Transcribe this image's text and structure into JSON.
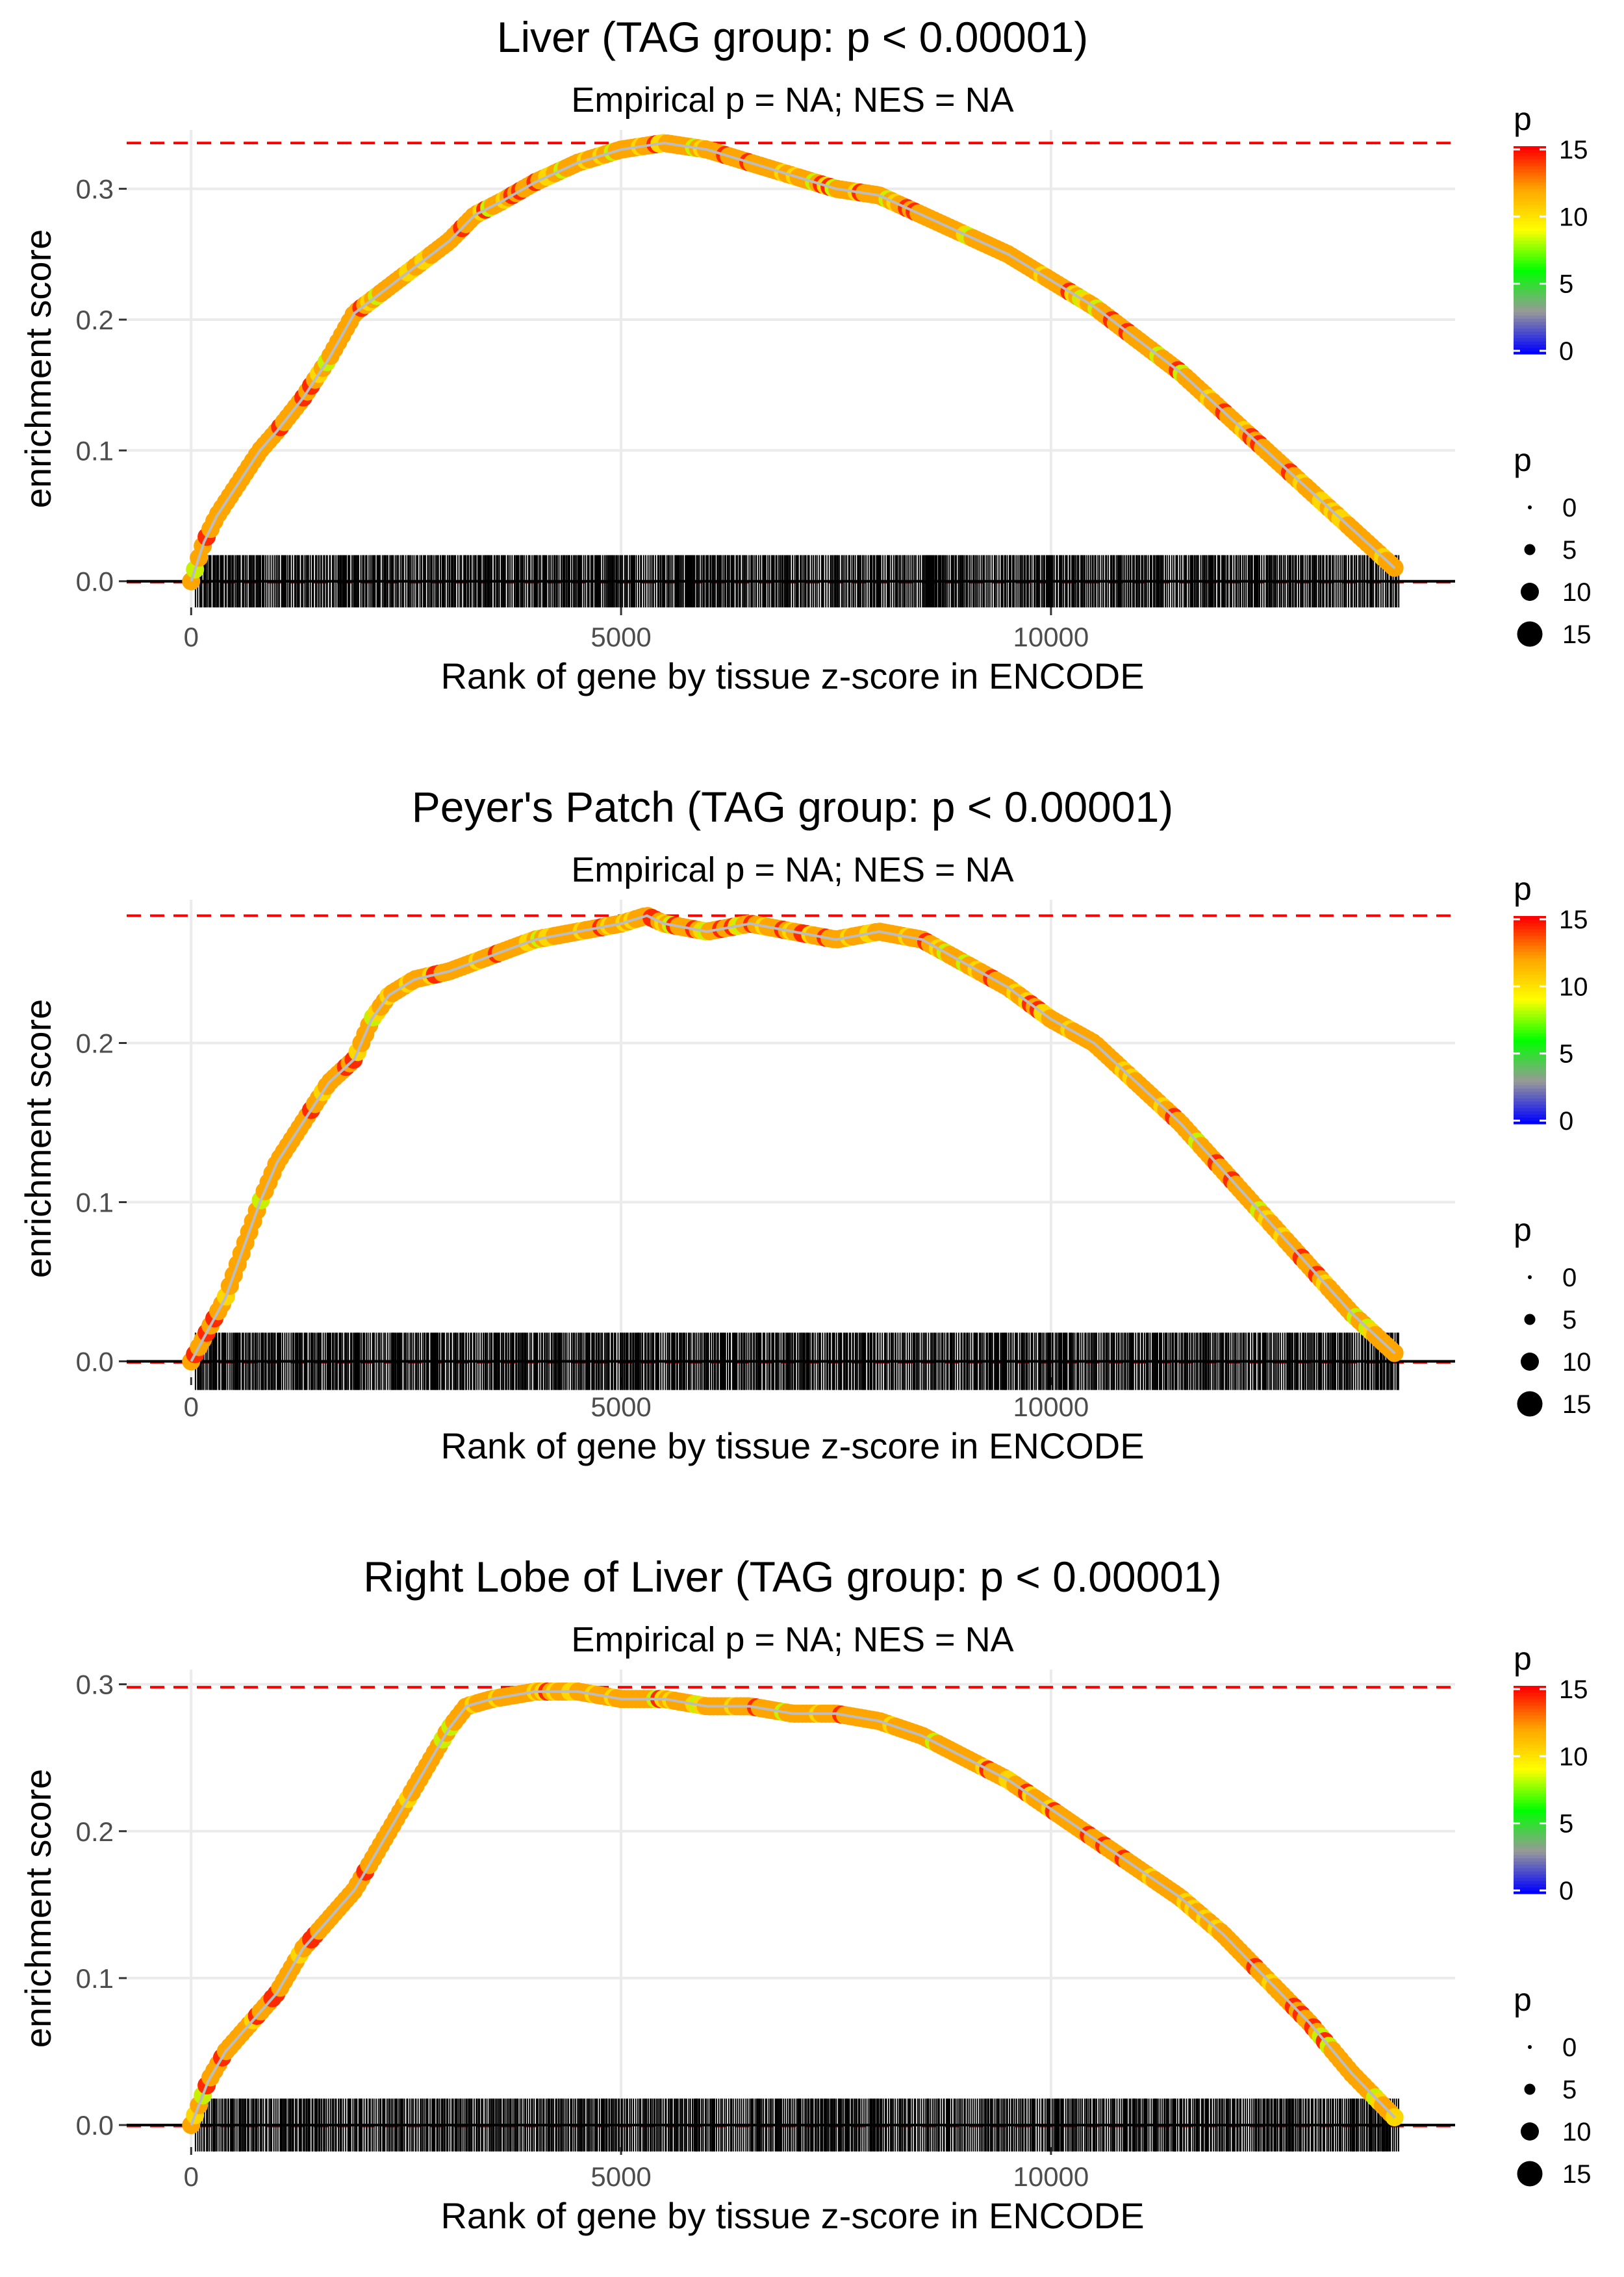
{
  "chart_data": [
    {
      "type": "line",
      "title": "Liver (TAG group: p < 0.00001)",
      "subtitle": "Empirical p = NA; NES = NA",
      "xlabel": "Rank of gene by tissue z-score in ENCODE",
      "ylabel": "enrichment score",
      "xlim": [
        -750,
        14700
      ],
      "ylim": [
        -0.02,
        0.345
      ],
      "xticks": [
        0,
        5000,
        10000
      ],
      "xtick_labels": [
        "0",
        "5000",
        "10000"
      ],
      "yticks": [
        0.0,
        0.1,
        0.2,
        0.3
      ],
      "ytick_labels": [
        "0.0",
        "0.1",
        "0.2",
        "0.3"
      ],
      "max_es": 0.335,
      "rug": {
        "x_start": 50,
        "x_end": 14050,
        "height": 0.02
      },
      "series": [
        {
          "name": "running enrichment score",
          "x": [
            0,
            150,
            300,
            500,
            800,
            1000,
            1300,
            1600,
            1900,
            2200,
            2600,
            3000,
            3300,
            3600,
            4000,
            4500,
            5000,
            5500,
            6000,
            6500,
            7000,
            7500,
            8000,
            8500,
            9000,
            9500,
            10000,
            10500,
            11000,
            11500,
            12000,
            12500,
            13000,
            13500,
            14000
          ],
          "y": [
            0.0,
            0.03,
            0.05,
            0.07,
            0.1,
            0.115,
            0.14,
            0.17,
            0.205,
            0.22,
            0.24,
            0.26,
            0.28,
            0.29,
            0.305,
            0.32,
            0.33,
            0.335,
            0.33,
            0.32,
            0.31,
            0.3,
            0.295,
            0.28,
            0.265,
            0.25,
            0.23,
            0.21,
            0.185,
            0.16,
            0.13,
            0.1,
            0.07,
            0.04,
            0.01
          ]
        }
      ],
      "legend": {
        "color_title": "p",
        "color_tick_labels": [
          "0",
          "5",
          "10",
          "15"
        ],
        "color_tick_values": [
          0,
          5,
          10,
          15
        ],
        "colors": [
          "#0000ff",
          "#999999",
          "#00ff00",
          "#ffff00",
          "#ffa500",
          "#ff0000"
        ],
        "size_title": "p",
        "size_labels": [
          "0",
          "5",
          "10",
          "15"
        ],
        "size_values": [
          0,
          5,
          10,
          15
        ]
      }
    },
    {
      "type": "line",
      "title": "Peyer's Patch (TAG group: p < 0.00001)",
      "subtitle": "Empirical p = NA; NES = NA",
      "xlabel": "Rank of gene by tissue z-score in ENCODE",
      "ylabel": "enrichment score",
      "xlim": [
        -750,
        14700
      ],
      "ylim": [
        -0.01,
        0.29
      ],
      "xticks": [
        0,
        5000,
        10000
      ],
      "xtick_labels": [
        "0",
        "5000",
        "10000"
      ],
      "yticks": [
        0.0,
        0.1,
        0.2
      ],
      "ytick_labels": [
        "0.0",
        "0.1",
        "0.2"
      ],
      "max_es": 0.28,
      "rug": {
        "x_start": 50,
        "x_end": 14050,
        "height": 0.018
      },
      "series": [
        {
          "name": "running enrichment score",
          "x": [
            0,
            200,
            400,
            600,
            800,
            1000,
            1300,
            1600,
            1900,
            2100,
            2300,
            2600,
            3000,
            3500,
            4000,
            4500,
            5000,
            5300,
            5500,
            6000,
            6500,
            7000,
            7500,
            8000,
            8500,
            9000,
            9500,
            10000,
            10500,
            11000,
            11500,
            12000,
            12500,
            13000,
            13500,
            14000
          ],
          "y": [
            0.0,
            0.02,
            0.04,
            0.07,
            0.1,
            0.125,
            0.15,
            0.175,
            0.19,
            0.215,
            0.23,
            0.24,
            0.245,
            0.255,
            0.265,
            0.27,
            0.275,
            0.28,
            0.275,
            0.27,
            0.275,
            0.27,
            0.265,
            0.27,
            0.265,
            0.25,
            0.235,
            0.215,
            0.2,
            0.175,
            0.15,
            0.12,
            0.09,
            0.06,
            0.03,
            0.005
          ]
        }
      ],
      "legend": {
        "color_title": "p",
        "color_tick_labels": [
          "0",
          "5",
          "10",
          "15"
        ],
        "color_tick_values": [
          0,
          5,
          10,
          15
        ],
        "colors": [
          "#0000ff",
          "#999999",
          "#00ff00",
          "#ffff00",
          "#ffa500",
          "#ff0000"
        ],
        "size_title": "p",
        "size_labels": [
          "0",
          "5",
          "10",
          "15"
        ],
        "size_values": [
          0,
          5,
          10,
          15
        ]
      }
    },
    {
      "type": "line",
      "title": "Right Lobe of Liver (TAG group: p < 0.00001)",
      "subtitle": "Empirical p = NA; NES = NA",
      "xlabel": "Rank of gene by tissue z-score in ENCODE",
      "ylabel": "enrichment score",
      "xlim": [
        -750,
        14700
      ],
      "ylim": [
        -0.015,
        0.31
      ],
      "xticks": [
        0,
        5000,
        10000
      ],
      "xtick_labels": [
        "0",
        "5000",
        "10000"
      ],
      "yticks": [
        0.0,
        0.1,
        0.2,
        0.3
      ],
      "ytick_labels": [
        "0.0",
        "0.1",
        "0.2",
        "0.3"
      ],
      "max_es": 0.298,
      "rug": {
        "x_start": 50,
        "x_end": 14050,
        "height": 0.018
      },
      "series": [
        {
          "name": "running enrichment score",
          "x": [
            0,
            200,
            400,
            700,
            1000,
            1300,
            1600,
            1900,
            2200,
            2500,
            2800,
            3000,
            3200,
            3500,
            4000,
            4500,
            5000,
            5500,
            6000,
            6500,
            7000,
            7500,
            8000,
            8500,
            9000,
            9500,
            10000,
            10500,
            11000,
            11500,
            12000,
            12500,
            13000,
            13500,
            14000
          ],
          "y": [
            0.0,
            0.03,
            0.05,
            0.07,
            0.09,
            0.12,
            0.14,
            0.16,
            0.19,
            0.22,
            0.25,
            0.27,
            0.285,
            0.29,
            0.295,
            0.295,
            0.29,
            0.29,
            0.285,
            0.285,
            0.28,
            0.28,
            0.275,
            0.265,
            0.25,
            0.235,
            0.215,
            0.195,
            0.175,
            0.155,
            0.13,
            0.1,
            0.07,
            0.035,
            0.005
          ]
        }
      ],
      "legend": {
        "color_title": "p",
        "color_tick_labels": [
          "0",
          "5",
          "10",
          "15"
        ],
        "color_tick_values": [
          0,
          5,
          10,
          15
        ],
        "colors": [
          "#0000ff",
          "#999999",
          "#00ff00",
          "#ffff00",
          "#ffa500",
          "#ff0000"
        ],
        "size_title": "p",
        "size_labels": [
          "0",
          "5",
          "10",
          "15"
        ],
        "size_values": [
          0,
          5,
          10,
          15
        ]
      }
    }
  ]
}
